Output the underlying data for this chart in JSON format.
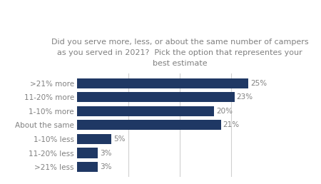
{
  "title": "Did you serve more, less, or about the same number of campers\nas you served in 2021?  Pick the option that representes your\nbest estimate",
  "categories": [
    ">21% less",
    "11-20% less",
    "1-10% less",
    "About the same",
    "1-10% more",
    "11-20% more",
    ">21% more"
  ],
  "values": [
    3,
    3,
    5,
    21,
    20,
    23,
    25
  ],
  "bar_color": "#1f3864",
  "label_color": "#808080",
  "title_color": "#808080",
  "value_labels": [
    "3%",
    "3%",
    "5%",
    "21%",
    "20%",
    "23%",
    "25%"
  ],
  "xlim": [
    0,
    30
  ],
  "background_color": "#ffffff",
  "title_fontsize": 8.0,
  "label_fontsize": 7.5,
  "value_fontsize": 7.5,
  "grid_color": "#d0d0d0",
  "bar_height": 0.72
}
